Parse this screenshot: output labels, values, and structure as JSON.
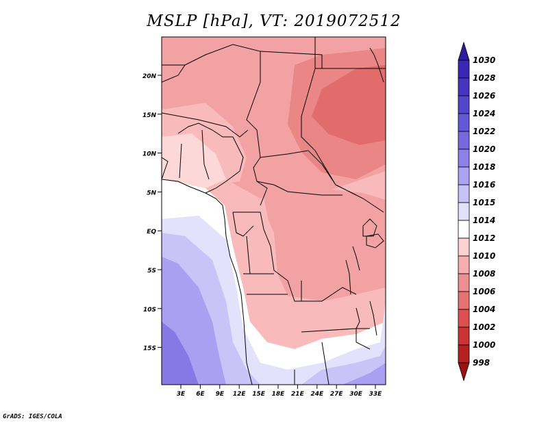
{
  "title": "MSLP [hPa], VT: 2019072512",
  "credit": "GrADS: IGES/COLA",
  "lat_labels": [
    "20N",
    "15N",
    "10N",
    "5N",
    "EQ",
    "5S",
    "10S",
    "15S"
  ],
  "lon_labels": [
    "3E",
    "6E",
    "9E",
    "12E",
    "15E",
    "18E",
    "21E",
    "24E",
    "27E",
    "30E",
    "33E"
  ],
  "colorbar": {
    "levels": [
      "1030",
      "1028",
      "1026",
      "1024",
      "1022",
      "1020",
      "1018",
      "1016",
      "1015",
      "1014",
      "1012",
      "1010",
      "1008",
      "1006",
      "1004",
      "1002",
      "1000",
      "998"
    ],
    "colors": [
      "#2d1ba0",
      "#3a28b4",
      "#4535c0",
      "#5446cc",
      "#6558d6",
      "#7868e0",
      "#8e80ea",
      "#aaa2f2",
      "#c6c2f7",
      "#e2e0fb",
      "#ffffff",
      "#fcd2d2",
      "#f6aeae",
      "#ef9090",
      "#e77272",
      "#dd5050",
      "#cc3434",
      "#b52020",
      "#9b1111"
    ]
  },
  "map": {
    "colors": {
      "blue_deep": "#8878e6",
      "blue_mid": "#a9a0f2",
      "blue_light": "#c8c4f7",
      "blue_pale": "#e3e1fb",
      "white": "#ffffff",
      "pink_pale": "#fdd8d8",
      "pink": "#f8baba",
      "red_light": "#f2a2a2",
      "red": "#ea8686",
      "red_dark": "#e26c6c"
    }
  }
}
